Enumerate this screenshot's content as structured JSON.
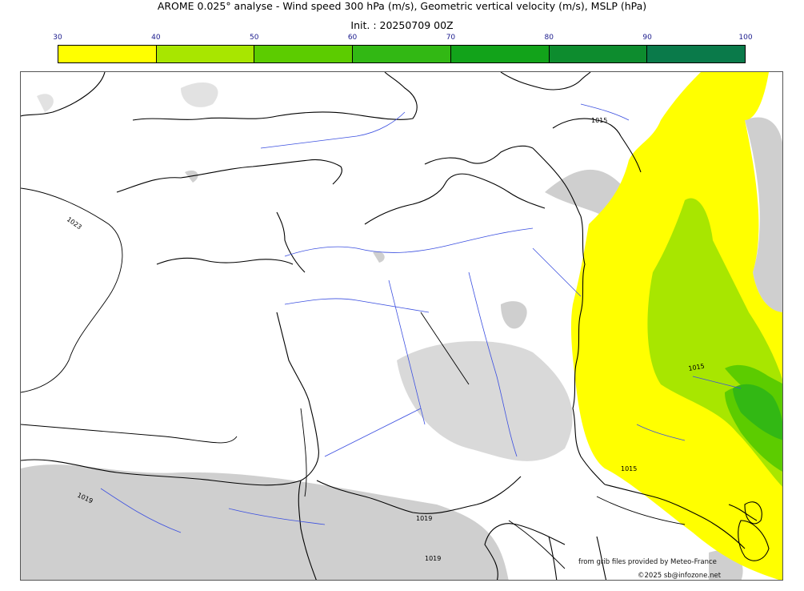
{
  "header": {
    "title": "AROME 0.025° analyse - Wind speed 300 hPa (m/s), Geometric vertical velocity (m/s), MSLP (hPa)",
    "init": "Init. : 20250709 00Z"
  },
  "colorbar": {
    "ticks": [
      "30",
      "40",
      "50",
      "60",
      "70",
      "80",
      "90",
      "100"
    ],
    "colors": [
      "#ffff00",
      "#a8e600",
      "#5ccc00",
      "#32b814",
      "#12a31a",
      "#0d8c2e",
      "#0a7a4a"
    ]
  },
  "map": {
    "isobar_labels": [
      "1015",
      "1023",
      "1019",
      "1019",
      "1019",
      "1015",
      "1015"
    ],
    "colors": {
      "land_line": "#000000",
      "river": "#3b4fe0",
      "lift": "#cfcfcf"
    }
  },
  "footer": {
    "source": "from grib files provided by Meteo-France",
    "copyright": "©2025 sb@infozone.net"
  }
}
